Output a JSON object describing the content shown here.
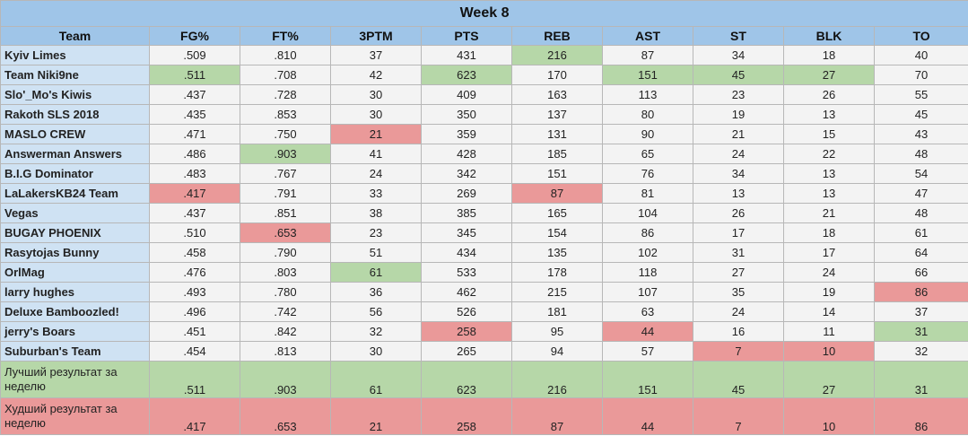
{
  "title": "Week 8",
  "columns": [
    "Team",
    "FG%",
    "FT%",
    "3PTM",
    "PTS",
    "REB",
    "AST",
    "ST",
    "BLK",
    "TO"
  ],
  "rows": [
    {
      "team": "Kyiv Limes",
      "values": [
        ".509",
        ".810",
        "37",
        "431",
        "216",
        "87",
        "34",
        "18",
        "40"
      ],
      "best": [
        4
      ],
      "worst": []
    },
    {
      "team": "Team Niki9ne",
      "values": [
        ".511",
        ".708",
        "42",
        "623",
        "170",
        "151",
        "45",
        "27",
        "70"
      ],
      "best": [
        0,
        3,
        5,
        6,
        7
      ],
      "worst": []
    },
    {
      "team": "Slo'_Mo's Kiwis",
      "values": [
        ".437",
        ".728",
        "30",
        "409",
        "163",
        "113",
        "23",
        "26",
        "55"
      ],
      "best": [],
      "worst": []
    },
    {
      "team": "Rakoth SLS 2018",
      "values": [
        ".435",
        ".853",
        "30",
        "350",
        "137",
        "80",
        "19",
        "13",
        "45"
      ],
      "best": [],
      "worst": []
    },
    {
      "team": "MASLO CREW",
      "values": [
        ".471",
        ".750",
        "21",
        "359",
        "131",
        "90",
        "21",
        "15",
        "43"
      ],
      "best": [],
      "worst": [
        2
      ]
    },
    {
      "team": "Answerman Answers",
      "values": [
        ".486",
        ".903",
        "41",
        "428",
        "185",
        "65",
        "24",
        "22",
        "48"
      ],
      "best": [
        1
      ],
      "worst": []
    },
    {
      "team": "B.I.G Dominator",
      "values": [
        ".483",
        ".767",
        "24",
        "342",
        "151",
        "76",
        "34",
        "13",
        "54"
      ],
      "best": [],
      "worst": []
    },
    {
      "team": "LaLakersKB24 Team",
      "values": [
        ".417",
        ".791",
        "33",
        "269",
        "87",
        "81",
        "13",
        "13",
        "47"
      ],
      "best": [],
      "worst": [
        0,
        4
      ]
    },
    {
      "team": "Vegas",
      "values": [
        ".437",
        ".851",
        "38",
        "385",
        "165",
        "104",
        "26",
        "21",
        "48"
      ],
      "best": [],
      "worst": []
    },
    {
      "team": "BUGAY PHOENIX",
      "values": [
        ".510",
        ".653",
        "23",
        "345",
        "154",
        "86",
        "17",
        "18",
        "61"
      ],
      "best": [],
      "worst": [
        1
      ]
    },
    {
      "team": "Rasytojas Bunny",
      "values": [
        ".458",
        ".790",
        "51",
        "434",
        "135",
        "102",
        "31",
        "17",
        "64"
      ],
      "best": [],
      "worst": []
    },
    {
      "team": "OrlMag",
      "values": [
        ".476",
        ".803",
        "61",
        "533",
        "178",
        "118",
        "27",
        "24",
        "66"
      ],
      "best": [
        2
      ],
      "worst": []
    },
    {
      "team": "larry hughes",
      "values": [
        ".493",
        ".780",
        "36",
        "462",
        "215",
        "107",
        "35",
        "19",
        "86"
      ],
      "best": [],
      "worst": [
        8
      ]
    },
    {
      "team": "Deluxe Bamboozled!",
      "values": [
        ".496",
        ".742",
        "56",
        "526",
        "181",
        "63",
        "24",
        "14",
        "37"
      ],
      "best": [],
      "worst": []
    },
    {
      "team": "jerry's Boars",
      "values": [
        ".451",
        ".842",
        "32",
        "258",
        "95",
        "44",
        "16",
        "11",
        "31"
      ],
      "best": [
        8
      ],
      "worst": [
        3,
        5
      ]
    },
    {
      "team": "Suburban's Team",
      "values": [
        ".454",
        ".813",
        "30",
        "265",
        "94",
        "57",
        "7",
        "10",
        "32"
      ],
      "best": [],
      "worst": [
        6,
        7
      ]
    }
  ],
  "best_row": {
    "label": "Лучший результат за неделю",
    "values": [
      ".511",
      ".903",
      "61",
      "623",
      "216",
      "151",
      "45",
      "27",
      "31"
    ]
  },
  "worst_row": {
    "label": "Худший результат за неделю",
    "values": [
      ".417",
      ".653",
      "21",
      "258",
      "87",
      "44",
      "7",
      "10",
      "86"
    ]
  },
  "colors": {
    "header": "#9fc5e8",
    "team_cell": "#cfe2f3",
    "best": "#b6d7a8",
    "worst": "#ea9999",
    "cell": "#f3f3f3"
  }
}
